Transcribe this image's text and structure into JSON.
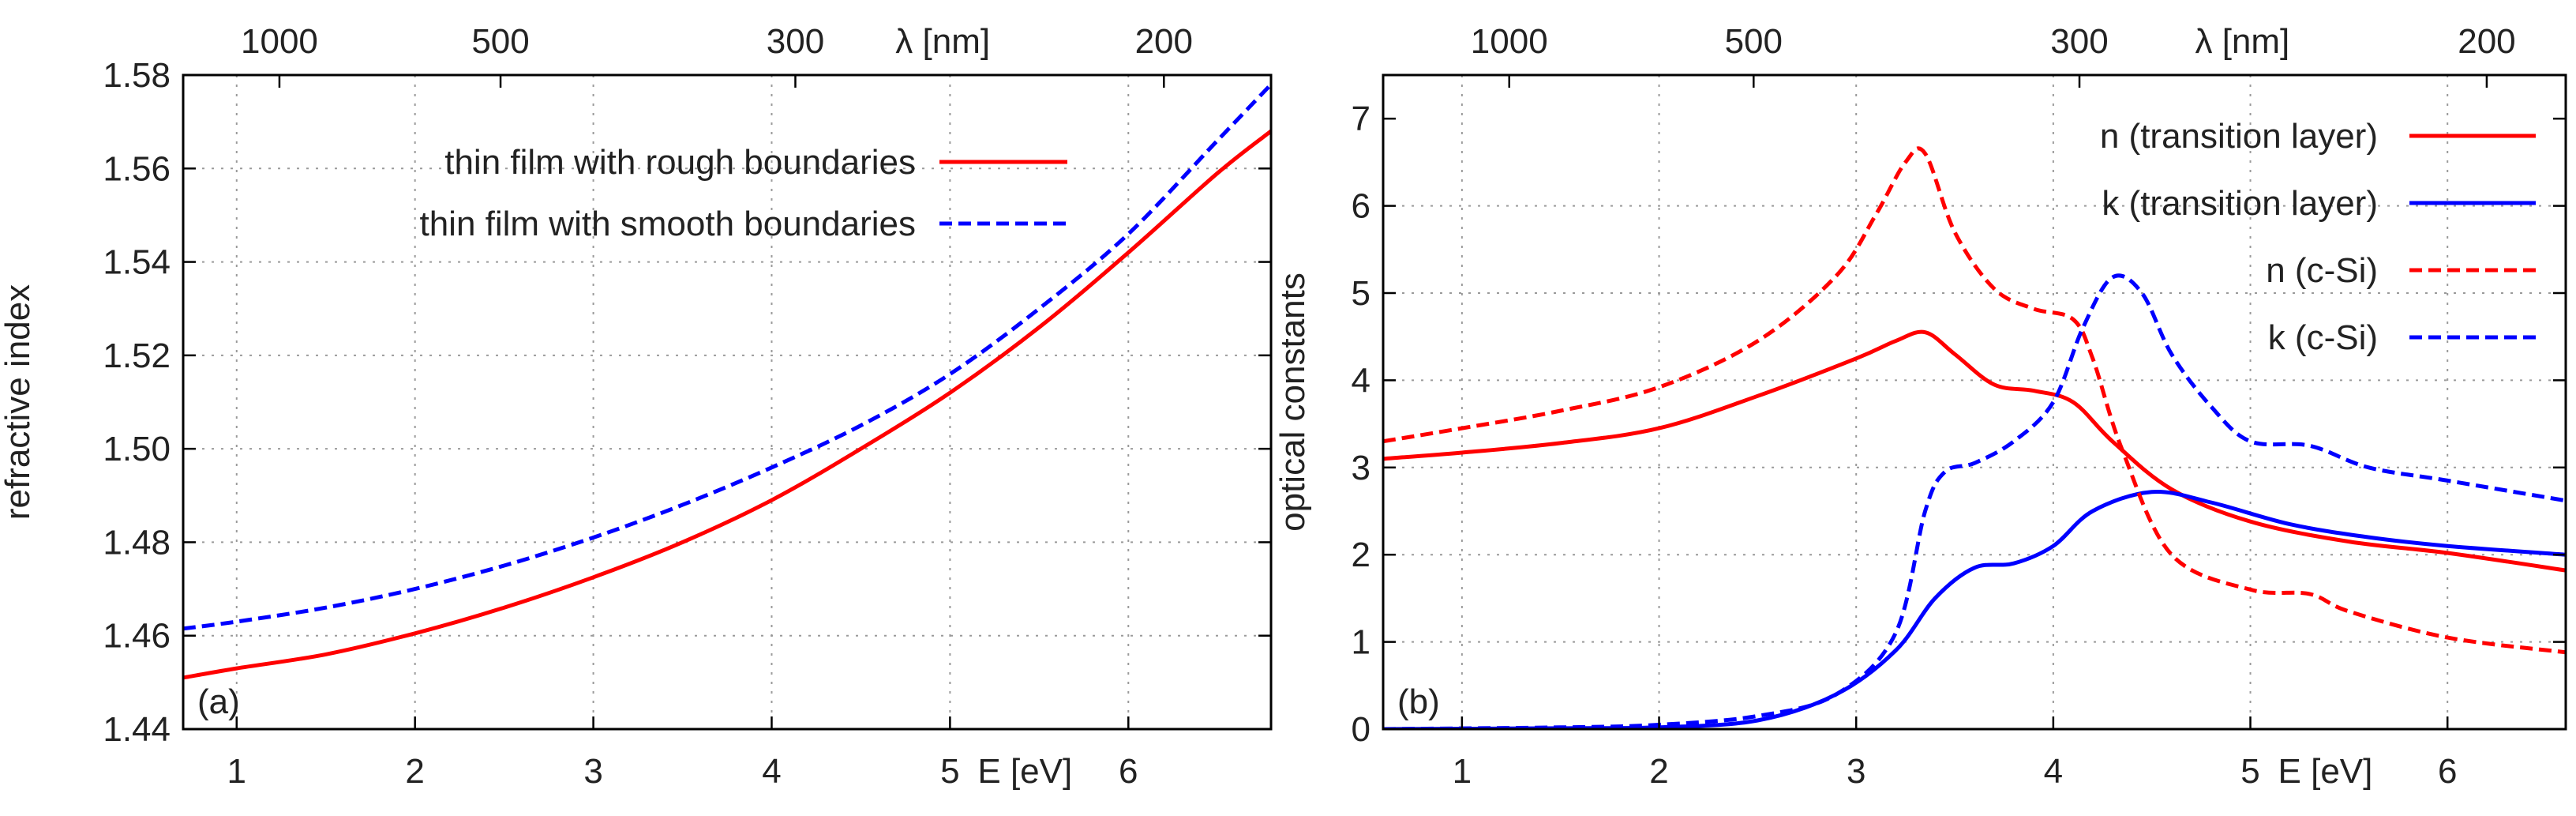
{
  "chart_data": [
    {
      "type": "line",
      "panel_label": "(a)",
      "xlabel": "E [eV]",
      "ylabel": "refractive index",
      "top_axis_label": "λ [nm]",
      "xlim": [
        0.7,
        6.8
      ],
      "ylim": [
        1.44,
        1.58
      ],
      "x_ticks": [
        1,
        2,
        3,
        4,
        5,
        6
      ],
      "y_ticks": [
        1.44,
        1.46,
        1.48,
        1.5,
        1.52,
        1.54,
        1.56,
        1.58
      ],
      "y_tick_labels": [
        "1.44",
        "1.46",
        "1.48",
        "1.50",
        "1.52",
        "1.54",
        "1.56",
        "1.58"
      ],
      "top_ticks_nm": [
        1000,
        500,
        300,
        200
      ],
      "grid": true,
      "legend_position": "top-left",
      "series": [
        {
          "name": "thin film with rough boundaries",
          "color": "#ff0000",
          "dash": "solid",
          "x": [
            0.7,
            1.0,
            1.5,
            2.0,
            2.5,
            3.0,
            3.5,
            4.0,
            4.5,
            5.0,
            5.5,
            6.0,
            6.5,
            6.8
          ],
          "y": [
            1.451,
            1.453,
            1.456,
            1.4605,
            1.466,
            1.4725,
            1.48,
            1.489,
            1.5,
            1.512,
            1.526,
            1.542,
            1.559,
            1.568
          ]
        },
        {
          "name": "thin film with smooth boundaries",
          "color": "#0000ff",
          "dash": "dashed",
          "x": [
            0.7,
            1.0,
            1.5,
            2.0,
            2.5,
            3.0,
            3.5,
            4.0,
            4.5,
            5.0,
            5.5,
            6.0,
            6.5,
            6.8
          ],
          "y": [
            1.4615,
            1.463,
            1.466,
            1.47,
            1.475,
            1.481,
            1.488,
            1.496,
            1.505,
            1.516,
            1.53,
            1.546,
            1.566,
            1.578
          ]
        }
      ]
    },
    {
      "type": "line",
      "panel_label": "(b)",
      "xlabel": "E [eV]",
      "ylabel": "optical constants",
      "top_axis_label": "λ [nm]",
      "xlim": [
        0.6,
        6.6
      ],
      "ylim": [
        0,
        7.5
      ],
      "x_ticks": [
        1,
        2,
        3,
        4,
        5,
        6
      ],
      "y_ticks": [
        0,
        1,
        2,
        3,
        4,
        5,
        6,
        7
      ],
      "y_tick_labels": [
        "0",
        "1",
        "2",
        "3",
        "4",
        "5",
        "6",
        "7"
      ],
      "top_ticks_nm": [
        1000,
        500,
        300,
        200
      ],
      "grid": true,
      "legend_position": "top-right",
      "series": [
        {
          "name": "n (transition layer)",
          "color": "#ff0000",
          "dash": "solid",
          "x": [
            0.6,
            1.0,
            1.5,
            2.0,
            2.5,
            3.0,
            3.2,
            3.35,
            3.5,
            3.7,
            3.9,
            4.1,
            4.3,
            4.6,
            5.0,
            5.5,
            6.0,
            6.6
          ],
          "y": [
            3.1,
            3.17,
            3.28,
            3.45,
            3.82,
            4.25,
            4.45,
            4.55,
            4.3,
            3.95,
            3.88,
            3.75,
            3.3,
            2.75,
            2.38,
            2.15,
            2.02,
            1.82
          ]
        },
        {
          "name": "k (transition layer)",
          "color": "#0000ff",
          "dash": "solid",
          "x": [
            0.6,
            1.5,
            2.0,
            2.5,
            2.9,
            3.2,
            3.4,
            3.6,
            3.8,
            4.0,
            4.2,
            4.5,
            4.8,
            5.2,
            5.6,
            6.0,
            6.6
          ],
          "y": [
            0.0,
            0.01,
            0.02,
            0.1,
            0.4,
            0.9,
            1.5,
            1.85,
            1.9,
            2.1,
            2.5,
            2.72,
            2.6,
            2.35,
            2.2,
            2.1,
            2.0
          ]
        },
        {
          "name": "n (c-Si)",
          "color": "#ff0000",
          "dash": "dashed",
          "x": [
            0.6,
            1.0,
            1.5,
            2.0,
            2.5,
            2.9,
            3.1,
            3.25,
            3.35,
            3.5,
            3.7,
            3.9,
            4.1,
            4.2,
            4.35,
            4.6,
            5.0,
            5.3,
            5.5,
            6.0,
            6.6
          ],
          "y": [
            3.3,
            3.45,
            3.65,
            3.92,
            4.45,
            5.2,
            5.9,
            6.5,
            6.6,
            5.7,
            5.05,
            4.82,
            4.7,
            4.25,
            3.2,
            2.0,
            1.6,
            1.55,
            1.35,
            1.05,
            0.88
          ]
        },
        {
          "name": "k (c-Si)",
          "color": "#0000ff",
          "dash": "dashed",
          "x": [
            0.6,
            1.5,
            2.0,
            2.5,
            2.9,
            3.2,
            3.35,
            3.45,
            3.6,
            3.8,
            4.0,
            4.15,
            4.3,
            4.45,
            4.6,
            4.8,
            5.0,
            5.3,
            5.6,
            6.0,
            6.6
          ],
          "y": [
            0.0,
            0.02,
            0.05,
            0.15,
            0.4,
            1.1,
            2.5,
            2.95,
            3.05,
            3.3,
            3.75,
            4.6,
            5.18,
            5.0,
            4.3,
            3.7,
            3.3,
            3.25,
            3.0,
            2.85,
            2.62
          ]
        }
      ]
    }
  ]
}
